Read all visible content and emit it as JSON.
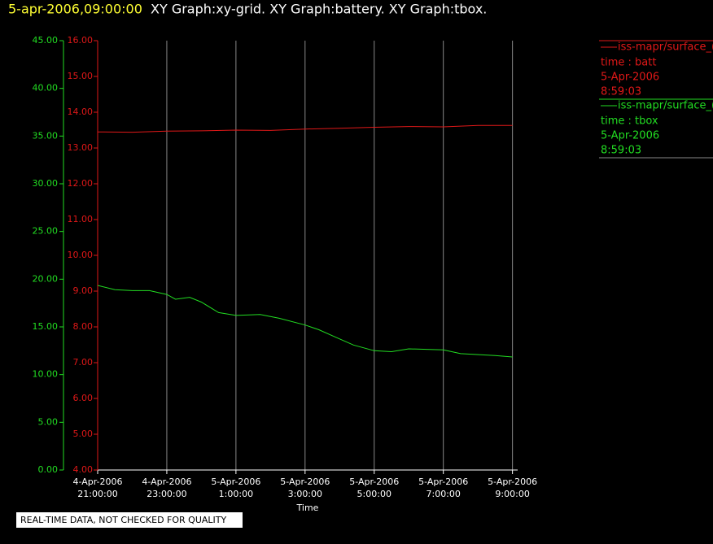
{
  "header": {
    "timestamp": "5-apr-2006,09:00:00",
    "graphs": "XY Graph:xy-grid.  XY Graph:battery.  XY Graph:tbox."
  },
  "chart_data": {
    "type": "line",
    "xlabel": "Time",
    "xlim": [
      0,
      12.15
    ],
    "xticks": [
      {
        "value": 0,
        "label": [
          "4-Apr-2006",
          "21:00:00"
        ]
      },
      {
        "value": 2,
        "label": [
          "4-Apr-2006",
          "23:00:00"
        ]
      },
      {
        "value": 4,
        "label": [
          "5-Apr-2006",
          "1:00:00"
        ]
      },
      {
        "value": 6,
        "label": [
          "5-Apr-2006",
          "3:00:00"
        ]
      },
      {
        "value": 8,
        "label": [
          "5-Apr-2006",
          "5:00:00"
        ]
      },
      {
        "value": 10,
        "label": [
          "5-Apr-2006",
          "7:00:00"
        ]
      },
      {
        "value": 12,
        "label": [
          "5-Apr-2006",
          "9:00:00"
        ]
      }
    ],
    "grid": true,
    "ylim": [
      0,
      45
    ],
    "yticks": [
      {
        "value": 0,
        "label": "0.00"
      },
      {
        "value": 5,
        "label": "5.00"
      },
      {
        "value": 10,
        "label": "10.00"
      },
      {
        "value": 15,
        "label": "15.00"
      },
      {
        "value": 20,
        "label": "20.00"
      },
      {
        "value": 25,
        "label": "25.00"
      },
      {
        "value": 30,
        "label": "30.00"
      },
      {
        "value": 35,
        "label": "35.00"
      },
      {
        "value": 40,
        "label": "40.00"
      },
      {
        "value": 45,
        "label": "45.00"
      }
    ],
    "y2lim": [
      4,
      16
    ],
    "y2ticks": [
      {
        "value": 4,
        "label": "4.00"
      },
      {
        "value": 5,
        "label": "5.00"
      },
      {
        "value": 6,
        "label": "6.00"
      },
      {
        "value": 7,
        "label": "7.00"
      },
      {
        "value": 8,
        "label": "8.00"
      },
      {
        "value": 9,
        "label": "9.00"
      },
      {
        "value": 10,
        "label": "10.00"
      },
      {
        "value": 11,
        "label": "11.00"
      },
      {
        "value": 12,
        "label": "12.00"
      },
      {
        "value": 13,
        "label": "13.00"
      },
      {
        "value": 14,
        "label": "14.00"
      },
      {
        "value": 15,
        "label": "15.00"
      },
      {
        "value": 16,
        "label": "16.00"
      }
    ],
    "y_color": "#22dd22",
    "y2_color": "#e01818",
    "series": [
      {
        "name": "iss-mapr/surface_(",
        "xy": "time : batt",
        "date": "5-Apr-2006",
        "time": "8:59:03",
        "color": "#e01818",
        "axis": "y2",
        "x": [
          0,
          1,
          2,
          3,
          4,
          5,
          6,
          7,
          8,
          9,
          10,
          11,
          12
        ],
        "values": [
          13.45,
          13.44,
          13.47,
          13.48,
          13.5,
          13.49,
          13.53,
          13.55,
          13.58,
          13.6,
          13.59,
          13.63,
          13.63
        ]
      },
      {
        "name": "iss-mapr/surface_(",
        "xy": "time : tbox",
        "date": "5-Apr-2006",
        "time": "8:59:03",
        "color": "#22dd22",
        "axis": "y",
        "x": [
          0,
          0.5,
          1,
          1.5,
          2,
          2.25,
          2.66,
          3,
          3.5,
          4,
          4.7,
          5.25,
          6,
          6.4,
          6.9,
          7.4,
          8,
          8.5,
          9,
          10,
          10.5,
          11.5,
          12
        ],
        "values": [
          19.35,
          18.9,
          18.8,
          18.8,
          18.4,
          17.9,
          18.1,
          17.6,
          16.5,
          16.2,
          16.3,
          15.9,
          15.2,
          14.7,
          13.9,
          13.1,
          12.5,
          12.4,
          12.7,
          12.6,
          12.2,
          12.0,
          11.85
        ]
      }
    ]
  },
  "footer": "REAL-TIME DATA, NOT CHECKED FOR QUALITY"
}
